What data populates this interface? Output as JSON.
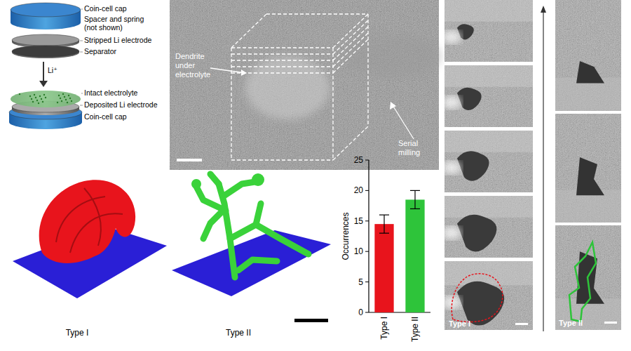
{
  "schematic": {
    "labels": [
      "Coin-cell cap",
      "Spacer and spring",
      "(not shown)",
      "Stripped Li electrode",
      "Separator",
      "Intact electrolyte",
      "Deposited Li electrode",
      "Coin-cell cap"
    ],
    "ion": "Li⁺"
  },
  "sem_image": {
    "dendrite_label": [
      "Dendrite",
      "under",
      "electrolyte"
    ],
    "milling_label": [
      "Serial",
      "milling"
    ]
  },
  "renders": {
    "captions": [
      "Type I",
      "Type II"
    ]
  },
  "cross_sections": {
    "captions": [
      "Type I",
      "Type II"
    ]
  },
  "chart_data": {
    "type": "bar",
    "categories": [
      "Type I",
      "Type II"
    ],
    "values": [
      14.5,
      18.5
    ],
    "errors": [
      1.5,
      1.5
    ],
    "colors": [
      "#e8141c",
      "#2ec43a"
    ],
    "ylabel": "Occurrences",
    "ylim": [
      0,
      25
    ],
    "yticks": [
      0,
      5,
      10,
      15,
      20,
      25
    ]
  }
}
